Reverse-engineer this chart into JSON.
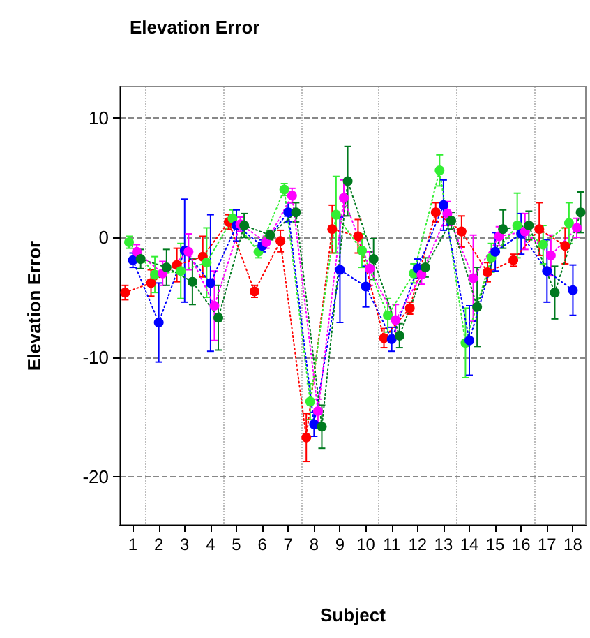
{
  "chart_data": {
    "type": "line",
    "title": "Elevation Error",
    "xlabel": "Subject",
    "ylabel": "Elevation Error",
    "xlim": [
      0.5,
      18.5
    ],
    "xticks": [
      1,
      2,
      3,
      4,
      5,
      6,
      7,
      8,
      9,
      10,
      11,
      12,
      13,
      14,
      15,
      16,
      17,
      18
    ],
    "ylim": [
      -24,
      12.6
    ],
    "yticks": [
      -20,
      -10,
      0,
      10
    ],
    "grid": true,
    "marker": "circle",
    "line_style": "dotted",
    "series": [
      {
        "color": "#ff0000",
        "x": [
          0.7,
          1.7,
          2.7,
          3.7,
          4.7,
          5.7,
          6.7,
          7.7,
          8.7,
          9.7,
          10.7,
          11.7,
          12.7,
          13.7,
          14.7,
          15.7,
          16.7,
          17.7
        ],
        "values": [
          -4.6,
          -3.8,
          -2.3,
          -1.6,
          1.3,
          -4.5,
          -0.3,
          -16.7,
          0.7,
          0.1,
          -8.4,
          -5.9,
          2.1,
          0.5,
          -2.9,
          -1.9,
          0.7,
          -0.7
        ],
        "errors": [
          0.6,
          1.1,
          1.4,
          1.7,
          0.6,
          0.5,
          0.9,
          2,
          2,
          1.4,
          0.8,
          0.5,
          0.8,
          1.3,
          0.8,
          0.5,
          2.2,
          1.5
        ]
      },
      {
        "color": "#33ee33",
        "x": [
          0.85,
          1.85,
          2.85,
          3.85,
          4.85,
          5.85,
          6.85,
          7.85,
          8.85,
          9.85,
          10.85,
          11.85,
          12.85,
          13.85,
          14.85,
          15.85,
          16.85,
          17.85
        ],
        "values": [
          -0.4,
          -3.1,
          -2.8,
          -2.1,
          1.6,
          -1.2,
          4,
          -13.7,
          1.9,
          -1.1,
          -6.5,
          -3,
          5.6,
          -8.8,
          -1.7,
          1,
          -0.6,
          1.2
        ],
        "errors": [
          0.5,
          1.5,
          2.3,
          2.9,
          0.7,
          0.5,
          0.5,
          1.5,
          3.2,
          1.4,
          1.4,
          0.8,
          1.3,
          2.9,
          1.2,
          2.7,
          1.6,
          1.7
        ]
      },
      {
        "color": "#0000ff",
        "x": [
          1,
          2,
          3,
          4,
          5,
          6,
          7,
          8,
          9,
          10,
          11,
          12,
          13,
          14,
          15,
          16,
          17,
          18
        ],
        "values": [
          -1.9,
          -7.1,
          -1.1,
          -3.8,
          1,
          -0.7,
          2.1,
          -15.6,
          -2.7,
          -4.1,
          -8.5,
          -2.6,
          2.7,
          -8.6,
          -1.2,
          0.3,
          -2.8,
          -4.4
        ],
        "errors": [
          0.6,
          3.3,
          4.3,
          5.7,
          1.3,
          0.5,
          0.8,
          1,
          4.4,
          1.7,
          1,
          0.8,
          2.1,
          2.9,
          1.6,
          1.7,
          2.6,
          2.1
        ]
      },
      {
        "color": "#ff00ff",
        "x": [
          1.15,
          2.15,
          3.15,
          4.15,
          5.15,
          6.15,
          7.15,
          8.15,
          9.15,
          10.15,
          11.15,
          12.15,
          13.15,
          14.15,
          15.15,
          16.15,
          17.15,
          18.15
        ],
        "values": [
          -1.2,
          -3,
          -1.2,
          -5.7,
          1.1,
          -0.4,
          3.5,
          -14.5,
          3.3,
          -2.6,
          -6.9,
          -3.1,
          2,
          -3.4,
          0.1,
          0.5,
          -1.5,
          0.8
        ],
        "errors": [
          0.6,
          1,
          1.5,
          2.9,
          0.6,
          0.5,
          0.6,
          1,
          1.5,
          1.4,
          1.3,
          0.8,
          1,
          3.6,
          0.8,
          1.5,
          1.7,
          0.8
        ]
      },
      {
        "color": "#007a1f",
        "x": [
          1.3,
          2.3,
          3.3,
          4.3,
          5.3,
          6.3,
          7.3,
          8.3,
          9.3,
          10.3,
          11.3,
          12.3,
          13.3,
          14.3,
          15.3,
          16.3,
          17.3,
          18.3
        ],
        "values": [
          -1.8,
          -2.5,
          -3.7,
          -6.7,
          1,
          0.2,
          2.1,
          -15.8,
          4.7,
          -1.8,
          -8.2,
          -2.5,
          1.4,
          -5.8,
          0.7,
          1,
          -4.6,
          2.1
        ],
        "errors": [
          0.8,
          1.5,
          1.9,
          2.7,
          1,
          0.4,
          0.8,
          1.8,
          2.9,
          1.7,
          1,
          0.8,
          0.7,
          3.3,
          1.6,
          1.2,
          2.2,
          1.7
        ]
      }
    ]
  }
}
